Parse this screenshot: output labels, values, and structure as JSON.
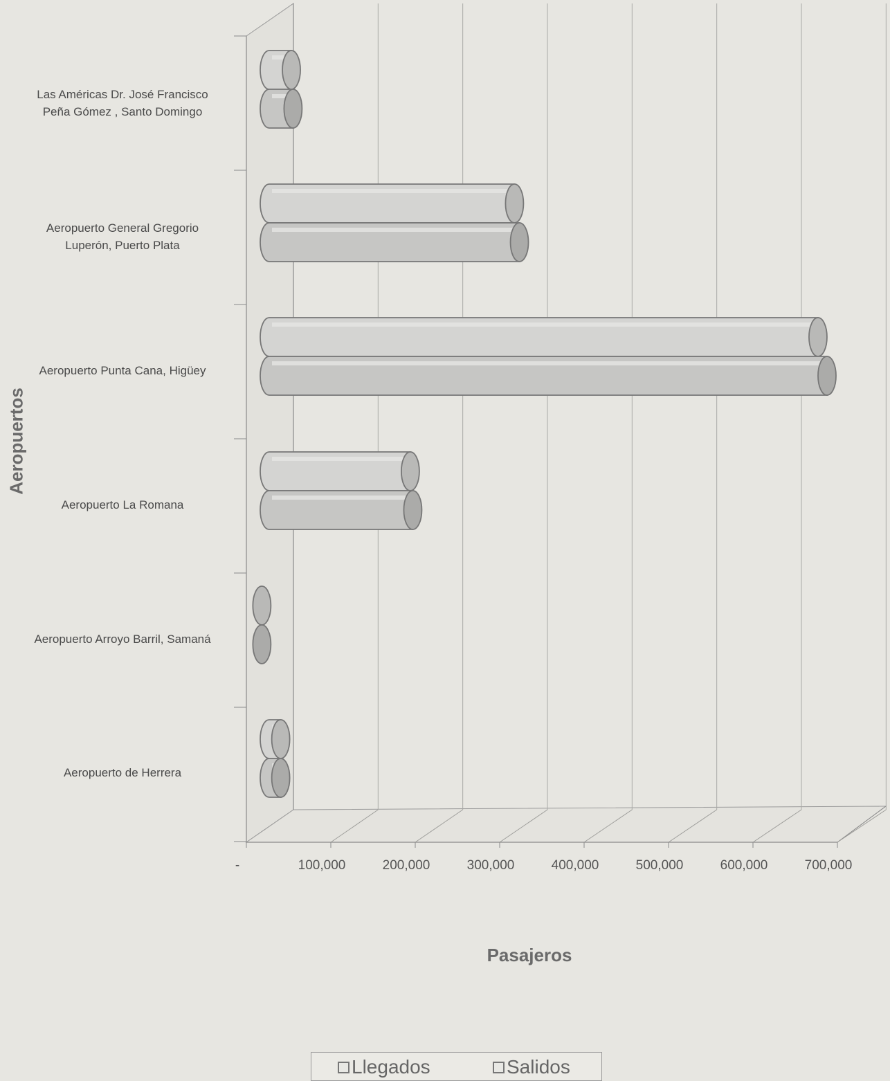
{
  "chart_data": {
    "type": "bar",
    "orientation": "horizontal",
    "style": "3d-cylinder",
    "categories": [
      "Las Américas Dr. José Francisco\nPeña Gómez , Santo Domingo",
      "Aeropuerto General Gregorio\nLuperón, Puerto Plata",
      "Aeropuerto Punta Cana, Higüey",
      "Aeropuerto La Romana",
      "Aeropuerto Arroyo Barril, Samaná",
      "Aeropuerto de Herrera"
    ],
    "series": [
      {
        "name": "Llegados",
        "values": [
          38000,
          310000,
          680000,
          183000,
          2000,
          25000
        ]
      },
      {
        "name": "Salidos",
        "values": [
          40000,
          316000,
          691000,
          186000,
          2000,
          25000
        ]
      }
    ],
    "xlabel": "Pasajeros",
    "ylabel": "Aeropuertos",
    "xlim": [
      0,
      700000
    ],
    "xticks": [
      "-",
      "100,000",
      "200,000",
      "300,000",
      "400,000",
      "500,000",
      "600,000",
      "700,000"
    ],
    "grid": true,
    "legend_position": "bottom"
  }
}
